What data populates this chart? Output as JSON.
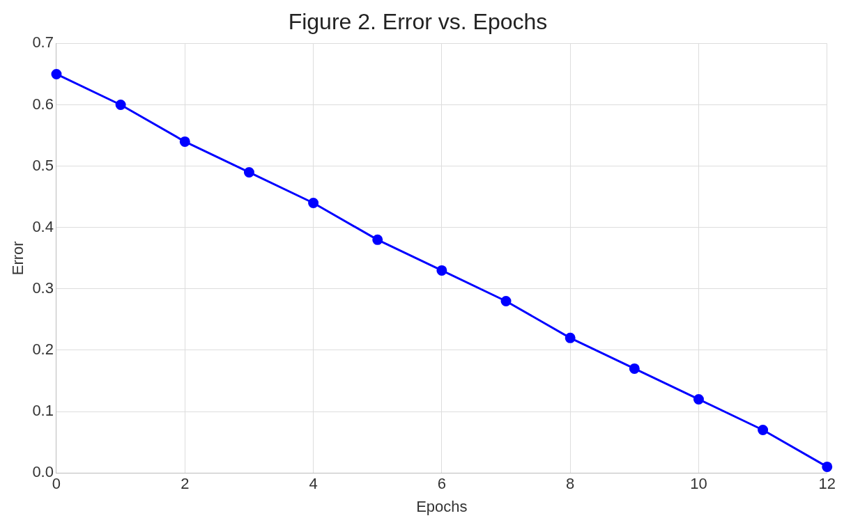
{
  "chart_data": {
    "type": "line",
    "title": "Figure 2. Error vs. Epochs",
    "xlabel": "Epochs",
    "ylabel": "Error",
    "x": [
      0,
      1,
      2,
      3,
      4,
      5,
      6,
      7,
      8,
      9,
      10,
      11,
      12
    ],
    "series": [
      {
        "color": "#0000ff",
        "values": [
          0.65,
          0.6,
          0.54,
          0.49,
          0.44,
          0.38,
          0.33,
          0.28,
          0.22,
          0.17,
          0.12,
          0.07,
          0.01
        ]
      }
    ],
    "xlim": [
      0,
      12
    ],
    "xticks": [
      0,
      2,
      4,
      6,
      8,
      10,
      12
    ],
    "ylim": [
      0,
      0.7
    ],
    "yticks": [
      {
        "value": 0,
        "label": "0.0"
      },
      {
        "value": 0.1,
        "label": "0.1"
      },
      {
        "value": 0.2,
        "label": "0.2"
      },
      {
        "value": 0.3,
        "label": "0.3"
      },
      {
        "value": 0.4,
        "label": "0.4"
      },
      {
        "value": 0.5,
        "label": "0.5"
      },
      {
        "value": 0.6,
        "label": "0.6"
      },
      {
        "value": 0.7,
        "label": "0.7"
      }
    ],
    "grid": true,
    "legend": false,
    "marker": "circle",
    "line_style": "solid"
  }
}
